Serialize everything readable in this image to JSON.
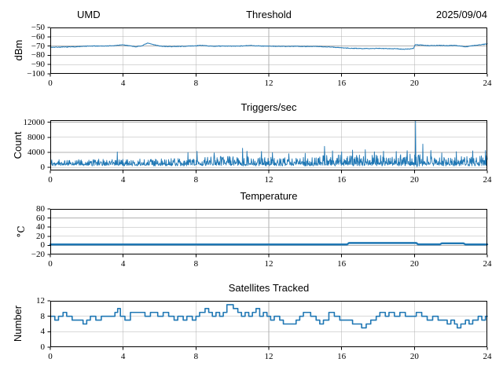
{
  "figure": {
    "background": "#ffffff",
    "line_color": "#1f77b4",
    "grid_color": "#b0b0b0",
    "spine_color": "#000000",
    "noise_seed": 7
  },
  "chart_data": [
    {
      "type": "line",
      "kind": "noisy-line",
      "title": "Threshold",
      "corner_left": "UMD",
      "corner_right": "2025/09/04",
      "ylabel": "dBm",
      "xlim": [
        0,
        24
      ],
      "xticks": [
        0,
        4,
        8,
        12,
        16,
        20,
        24
      ],
      "xticklabels": [
        "0",
        "4",
        "8",
        "12",
        "16",
        "20",
        "24"
      ],
      "ylim": [
        -100,
        -50
      ],
      "yticks": [
        -50,
        -60,
        -70,
        -80,
        -90,
        -100
      ],
      "yticklabels": [
        "−50",
        "−60",
        "−70",
        "−80",
        "−90",
        "−100"
      ],
      "grid": true,
      "series": {
        "name": "threshold_dbm",
        "linewidth": 1,
        "sample_step": 0.02,
        "noise_amp": 0.45,
        "keypoints": [
          [
            0,
            -71.3
          ],
          [
            0.5,
            -71.2
          ],
          [
            1,
            -71.0
          ],
          [
            1.5,
            -70.7
          ],
          [
            2,
            -70.2
          ],
          [
            2.5,
            -70.0
          ],
          [
            3,
            -70.0
          ],
          [
            3.5,
            -69.7
          ],
          [
            3.9,
            -68.7
          ],
          [
            4.3,
            -69.5
          ],
          [
            4.7,
            -70.8
          ],
          [
            5.0,
            -70.0
          ],
          [
            5.35,
            -66.9
          ],
          [
            5.7,
            -68.6
          ],
          [
            6.1,
            -70.3
          ],
          [
            6.6,
            -70.6
          ],
          [
            7,
            -70.4
          ],
          [
            7.5,
            -70.2
          ],
          [
            8,
            -69.8
          ],
          [
            8.25,
            -69.2
          ],
          [
            8.7,
            -70.1
          ],
          [
            9,
            -70.2
          ],
          [
            9.5,
            -70.0
          ],
          [
            10,
            -70.2
          ],
          [
            10.5,
            -69.9
          ],
          [
            11,
            -69.5
          ],
          [
            11.5,
            -69.9
          ],
          [
            12,
            -70.1
          ],
          [
            12.5,
            -70.3
          ],
          [
            13,
            -70.4
          ],
          [
            13.5,
            -70.2
          ],
          [
            14,
            -70.5
          ],
          [
            14.5,
            -70.4
          ],
          [
            15,
            -70.8
          ],
          [
            15.5,
            -71.2
          ],
          [
            16,
            -71.8
          ],
          [
            16.5,
            -72.4
          ],
          [
            17,
            -72.7
          ],
          [
            17.5,
            -72.7
          ],
          [
            18,
            -72.5
          ],
          [
            18.5,
            -72.7
          ],
          [
            19,
            -72.9
          ],
          [
            19.4,
            -73.5
          ],
          [
            19.7,
            -73.2
          ],
          [
            19.95,
            -72.5
          ],
          [
            20.05,
            -68.6
          ],
          [
            20.4,
            -69.0
          ],
          [
            20.8,
            -69.6
          ],
          [
            21.3,
            -69.4
          ],
          [
            21.8,
            -69.6
          ],
          [
            22.2,
            -69.3
          ],
          [
            22.5,
            -69.9
          ],
          [
            22.85,
            -70.9
          ],
          [
            23.1,
            -69.8
          ],
          [
            23.5,
            -68.9
          ],
          [
            23.8,
            -68.2
          ],
          [
            24,
            -67.6
          ]
        ]
      }
    },
    {
      "type": "line",
      "kind": "noisy-spikes",
      "title": "Triggers/sec",
      "ylabel": "Count",
      "xlim": [
        0,
        24
      ],
      "xticks": [
        0,
        4,
        8,
        12,
        16,
        20,
        24
      ],
      "xticklabels": [
        "0",
        "4",
        "8",
        "12",
        "16",
        "20",
        "24"
      ],
      "ylim": [
        -800,
        12550
      ],
      "yticks": [
        0,
        4000,
        8000,
        12000
      ],
      "yticklabels": [
        "0",
        "4000",
        "8000",
        "12000"
      ],
      "grid": true,
      "series": {
        "name": "triggers_per_sec",
        "linewidth": 0.9,
        "sample_step": 0.02,
        "baseline": 450,
        "mean_envelope": [
          [
            0,
            1500
          ],
          [
            4,
            1500
          ],
          [
            6,
            1550
          ],
          [
            8,
            1750
          ],
          [
            10,
            2050
          ],
          [
            11,
            1950
          ],
          [
            12,
            1850
          ],
          [
            13,
            1800
          ],
          [
            14,
            2000
          ],
          [
            15,
            2150
          ],
          [
            16,
            2200
          ],
          [
            17,
            2300
          ],
          [
            18,
            2150
          ],
          [
            19,
            2250
          ],
          [
            20,
            2350
          ],
          [
            20.5,
            2150
          ],
          [
            21,
            1950
          ],
          [
            22,
            1900
          ],
          [
            23,
            2000
          ],
          [
            24,
            2150
          ]
        ],
        "spikes": [
          [
            3.67,
            4100
          ],
          [
            7.55,
            3950
          ],
          [
            8.05,
            4300
          ],
          [
            9.0,
            3850
          ],
          [
            10.55,
            5100
          ],
          [
            10.8,
            4300
          ],
          [
            11.6,
            4250
          ],
          [
            12.2,
            3950
          ],
          [
            13.1,
            3650
          ],
          [
            14.0,
            3750
          ],
          [
            15.05,
            5600
          ],
          [
            15.5,
            4400
          ],
          [
            16.0,
            4150
          ],
          [
            16.6,
            4600
          ],
          [
            17.3,
            4700
          ],
          [
            17.8,
            4150
          ],
          [
            18.3,
            4300
          ],
          [
            19.0,
            4250
          ],
          [
            19.6,
            4450
          ],
          [
            20.05,
            12350
          ],
          [
            20.15,
            150
          ],
          [
            20.45,
            6200
          ],
          [
            20.9,
            4500
          ],
          [
            21.5,
            3850
          ],
          [
            22.3,
            4200
          ],
          [
            23.2,
            4400
          ],
          [
            23.9,
            4500
          ]
        ]
      }
    },
    {
      "type": "line",
      "kind": "line",
      "title": "Temperature",
      "ylabel": "°C",
      "xlim": [
        0,
        24
      ],
      "xticks": [
        0,
        4,
        8,
        12,
        16,
        20,
        24
      ],
      "xticklabels": [
        "0",
        "4",
        "8",
        "12",
        "16",
        "20",
        "24"
      ],
      "ylim": [
        -20,
        80
      ],
      "yticks": [
        -20,
        0,
        20,
        40,
        60,
        80
      ],
      "yticklabels": [
        "−20",
        "0",
        "20",
        "40",
        "60",
        "80"
      ],
      "grid": true,
      "series": {
        "name": "temperature_c",
        "linewidth": 2.4,
        "keypoints": [
          [
            0,
            2.0
          ],
          [
            16.3,
            2.0
          ],
          [
            16.4,
            5.2
          ],
          [
            20.1,
            5.2
          ],
          [
            20.2,
            2.2
          ],
          [
            21.4,
            2.2
          ],
          [
            21.5,
            4.4
          ],
          [
            22.7,
            4.4
          ],
          [
            22.8,
            2.0
          ],
          [
            24,
            2.0
          ]
        ]
      }
    },
    {
      "type": "line",
      "kind": "step",
      "title": "Satellites Tracked",
      "ylabel": "Number",
      "xlim": [
        0,
        24
      ],
      "xticks": [
        0,
        4,
        8,
        12,
        16,
        20,
        24
      ],
      "xticklabels": [
        "0",
        "4",
        "8",
        "12",
        "16",
        "20",
        "24"
      ],
      "ylim": [
        0,
        12
      ],
      "yticks": [
        0,
        4,
        8,
        12
      ],
      "yticklabels": [
        "0",
        "4",
        "8",
        "12"
      ],
      "grid": true,
      "series": {
        "name": "satellites_tracked",
        "linewidth": 1.6,
        "steps": [
          [
            0,
            8
          ],
          [
            0.25,
            7
          ],
          [
            0.45,
            8
          ],
          [
            0.7,
            9
          ],
          [
            0.9,
            8
          ],
          [
            1.2,
            7
          ],
          [
            1.8,
            6
          ],
          [
            2.0,
            7
          ],
          [
            2.2,
            8
          ],
          [
            2.5,
            7
          ],
          [
            2.8,
            8
          ],
          [
            3.55,
            9
          ],
          [
            3.7,
            10
          ],
          [
            3.85,
            8
          ],
          [
            4.1,
            7
          ],
          [
            4.4,
            9
          ],
          [
            5.2,
            8
          ],
          [
            5.5,
            9
          ],
          [
            5.9,
            8
          ],
          [
            6.2,
            9
          ],
          [
            6.5,
            8
          ],
          [
            6.8,
            7
          ],
          [
            7.0,
            8
          ],
          [
            7.3,
            7
          ],
          [
            7.5,
            8
          ],
          [
            7.8,
            7
          ],
          [
            8.0,
            8
          ],
          [
            8.2,
            9
          ],
          [
            8.5,
            10
          ],
          [
            8.7,
            9
          ],
          [
            8.9,
            8
          ],
          [
            9.1,
            9
          ],
          [
            9.3,
            8
          ],
          [
            9.5,
            9
          ],
          [
            9.7,
            11
          ],
          [
            10.05,
            10
          ],
          [
            10.3,
            9
          ],
          [
            10.5,
            8
          ],
          [
            10.7,
            9
          ],
          [
            10.9,
            8
          ],
          [
            11.1,
            9
          ],
          [
            11.3,
            10
          ],
          [
            11.5,
            8
          ],
          [
            11.7,
            9
          ],
          [
            11.9,
            8
          ],
          [
            12.1,
            7
          ],
          [
            12.3,
            8
          ],
          [
            12.6,
            7
          ],
          [
            12.8,
            6
          ],
          [
            13.5,
            7
          ],
          [
            13.7,
            8
          ],
          [
            13.9,
            9
          ],
          [
            14.3,
            8
          ],
          [
            14.6,
            7
          ],
          [
            14.8,
            6
          ],
          [
            15.0,
            7
          ],
          [
            15.3,
            9
          ],
          [
            15.6,
            8
          ],
          [
            15.9,
            7
          ],
          [
            16.6,
            6
          ],
          [
            17.1,
            5
          ],
          [
            17.35,
            6
          ],
          [
            17.6,
            7
          ],
          [
            17.9,
            8
          ],
          [
            18.1,
            9
          ],
          [
            18.4,
            8
          ],
          [
            18.6,
            9
          ],
          [
            18.9,
            8
          ],
          [
            19.2,
            9
          ],
          [
            19.5,
            8
          ],
          [
            20.1,
            9
          ],
          [
            20.4,
            8
          ],
          [
            20.7,
            7
          ],
          [
            21.0,
            8
          ],
          [
            21.3,
            7
          ],
          [
            21.8,
            6
          ],
          [
            22.0,
            7
          ],
          [
            22.2,
            6
          ],
          [
            22.35,
            5
          ],
          [
            22.55,
            6
          ],
          [
            22.8,
            7
          ],
          [
            23.0,
            6
          ],
          [
            23.2,
            7
          ],
          [
            23.5,
            8
          ],
          [
            23.7,
            7
          ],
          [
            23.9,
            8
          ],
          [
            24,
            8
          ]
        ]
      }
    }
  ]
}
